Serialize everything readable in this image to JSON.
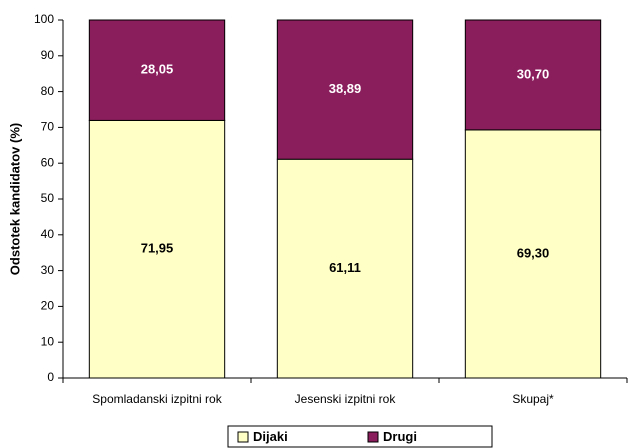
{
  "chart_data": {
    "type": "stacked_bar",
    "y_axis_label": "Odstotek kandidatov (%)",
    "categories": [
      "Spomladanski izpitni rok",
      "Jesenski izpitni rok",
      "Skupaj*"
    ],
    "series": [
      {
        "name": "Dijaki",
        "color": "#ffffc6",
        "label_color": "#000000",
        "values": [
          71.95,
          61.11,
          69.3
        ],
        "value_labels": [
          "71,95",
          "61,11",
          "69,30"
        ]
      },
      {
        "name": "Drugi",
        "color": "#8a1d5c",
        "label_color": "#ffffff",
        "values": [
          28.05,
          38.89,
          30.7
        ],
        "value_labels": [
          "28,05",
          "38,89",
          "30,70"
        ]
      }
    ],
    "ylim": [
      0,
      100
    ],
    "yticks": [
      0,
      10,
      20,
      30,
      40,
      50,
      60,
      70,
      80,
      90,
      100
    ],
    "grid": false,
    "legend": "bottom"
  }
}
